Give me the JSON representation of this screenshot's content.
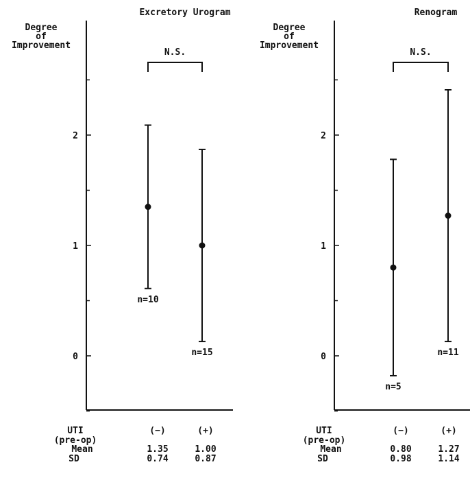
{
  "chart_data": [
    {
      "type": "scatter",
      "title": "Excretory Urogram",
      "ylabel_lines": [
        "Degree",
        "of",
        "Improvement"
      ],
      "ylim": [
        -0.5,
        3.0
      ],
      "yticks": [
        0,
        1,
        2
      ],
      "significance_label": "N.S.",
      "x_header": "UTI",
      "x_header_sub": "(pre-op)",
      "categories": [
        "(−)",
        "(+)"
      ],
      "mean_label": "Mean",
      "sd_label": "SD",
      "means": [
        1.35,
        1.0
      ],
      "means_text": [
        "1.35",
        "1.00"
      ],
      "sds": [
        0.74,
        0.87
      ],
      "sds_text": [
        "0.74",
        "0.87"
      ],
      "n_labels": [
        "n=10",
        "n=15"
      ]
    },
    {
      "type": "scatter",
      "title": "Renogram",
      "ylabel_lines": [
        "Degree",
        "of",
        "Improvement"
      ],
      "ylim": [
        -0.5,
        3.0
      ],
      "yticks": [
        0,
        1,
        2
      ],
      "significance_label": "N.S.",
      "x_header": "UTI",
      "x_header_sub": "(pre-op)",
      "categories": [
        "(−)",
        "(+)"
      ],
      "mean_label": "Mean",
      "sd_label": "SD",
      "means": [
        0.8,
        1.27
      ],
      "means_text": [
        "0.80",
        "1.27"
      ],
      "sds": [
        0.98,
        1.14
      ],
      "sds_text": [
        "0.98",
        "1.14"
      ],
      "n_labels": [
        "n=5",
        "n=11"
      ]
    }
  ]
}
